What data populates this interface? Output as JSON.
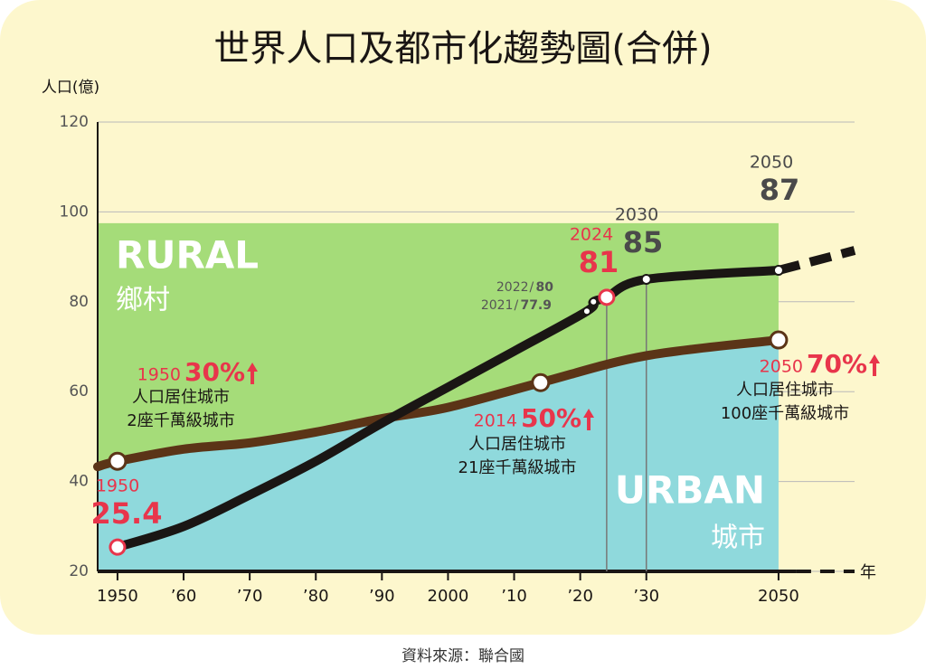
{
  "chart_data": {
    "type": "line",
    "title": "世界人口及都市化趨勢圖(合併)",
    "y_label": "人口(億)",
    "x_label": "年",
    "source": "資料來源：聯合國",
    "xlim": [
      1947,
      2061.5
    ],
    "ylim": [
      20,
      120
    ],
    "yticks": [
      20,
      40,
      60,
      80,
      100,
      120
    ],
    "xticks": [
      1950,
      {
        "value": 1960,
        "label": "’60"
      },
      {
        "value": 1970,
        "label": "’70"
      },
      {
        "value": 1980,
        "label": "’80"
      },
      {
        "value": 1990,
        "label": "’90"
      },
      2000,
      {
        "value": 2010,
        "label": "’10"
      },
      {
        "value": 2020,
        "label": "’20"
      },
      {
        "value": 2030,
        "label": "’30"
      },
      2050
    ],
    "grid": true,
    "series": [
      {
        "name": "URBAN",
        "label": "城市",
        "kind": "area",
        "color": "#8fd9dc",
        "line_color": "#5b3417",
        "x": [
          1947,
          1950,
          1960,
          1970,
          1980,
          1990,
          2000,
          2014,
          2030,
          2050
        ],
        "values": [
          43.3,
          44.5,
          47.2,
          48.6,
          51,
          54,
          56.5,
          62,
          68,
          71.5
        ]
      },
      {
        "name": "RURAL",
        "label": "鄉村",
        "kind": "band",
        "color": "#a5dc79",
        "x": [
          1947,
          2050
        ],
        "values": [
          97.5,
          97.5
        ]
      },
      {
        "kind": "line",
        "color": "#1a1614",
        "x": [
          1950,
          1960,
          1970,
          1980,
          1990,
          2000,
          2010,
          2021,
          2022,
          2024,
          2030,
          2050
        ],
        "values": [
          25.4,
          30,
          37,
          44.5,
          53,
          61,
          69,
          77.9,
          80,
          81,
          85,
          87
        ]
      }
    ],
    "population_labels": [
      {
        "x": 1950,
        "value": 25.4,
        "color": "#e8354b",
        "size": "large"
      },
      {
        "x": 2021,
        "value": 77.9,
        "color": "#555555",
        "size": "small"
      },
      {
        "x": 2022,
        "value": 80,
        "color": "#555555",
        "size": "small"
      },
      {
        "x": 2024,
        "value": 81,
        "color": "#e8354b",
        "size": "large",
        "drop": true
      },
      {
        "x": 2030,
        "value": 85,
        "color": "#4a4a4a",
        "size": "large",
        "drop": true
      },
      {
        "x": 2050,
        "value": 87,
        "color": "#4a4a4a",
        "size": "large"
      }
    ],
    "urban_labels": [
      {
        "x": 1950,
        "y": 44.5,
        "percent": "30%",
        "lines": [
          "人口居住城市",
          "2座千萬級城市"
        ]
      },
      {
        "x": 2014,
        "y": 62,
        "percent": "50%",
        "lines": [
          "人口居住城市",
          "21座千萬級城市"
        ]
      },
      {
        "x": 2050,
        "y": 71.5,
        "percent": "70%",
        "lines": [
          "人口居住城市",
          "100座千萬級城市"
        ]
      }
    ]
  }
}
